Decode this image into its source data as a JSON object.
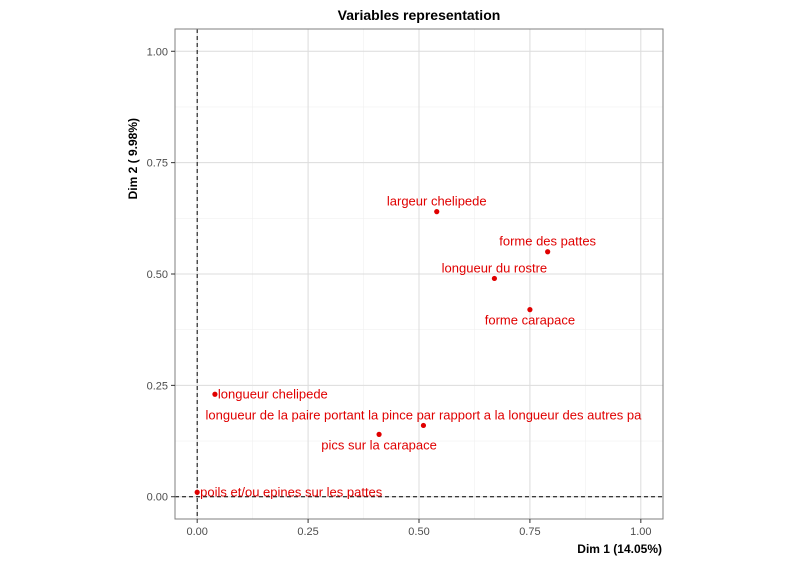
{
  "chart_data": {
    "type": "scatter",
    "title": "Variables representation",
    "xlabel": "Dim 1 (14.05%)",
    "ylabel": "Dim 2 ( 9.98%)",
    "xlim": [
      -0.05,
      1.05
    ],
    "ylim": [
      -0.05,
      1.05
    ],
    "x_ticks": [
      0.0,
      0.25,
      0.5,
      0.75,
      1.0
    ],
    "y_ticks": [
      0.0,
      0.25,
      0.5,
      0.75,
      1.0
    ],
    "x_tick_labels": [
      "0.00",
      "0.25",
      "0.50",
      "0.75",
      "1.00"
    ],
    "y_tick_labels": [
      "0.00",
      "0.25",
      "0.50",
      "0.75",
      "1.00"
    ],
    "grid": true,
    "reference_lines": {
      "x": 0,
      "y": 0,
      "style": "dashed"
    },
    "point_color": "#e00000",
    "points": [
      {
        "label": "largeur chelipede",
        "x": 0.54,
        "y": 0.64,
        "label_pos": "above"
      },
      {
        "label": "forme des pattes",
        "x": 0.79,
        "y": 0.55,
        "label_pos": "above"
      },
      {
        "label": "longueur du rostre",
        "x": 0.67,
        "y": 0.49,
        "label_pos": "above"
      },
      {
        "label": "forme carapace",
        "x": 0.75,
        "y": 0.42,
        "label_pos": "below"
      },
      {
        "label": "longueur chelipede",
        "x": 0.04,
        "y": 0.23,
        "label_pos": "right"
      },
      {
        "label": "longueur de la paire portant la pince par rapport a la longueur des autres pa",
        "x": 0.51,
        "y": 0.16,
        "label_pos": "above"
      },
      {
        "label": "pics sur la carapace",
        "x": 0.41,
        "y": 0.14,
        "label_pos": "below"
      },
      {
        "label": "poils et/ou epines sur les pattes",
        "x": 0.0,
        "y": 0.01,
        "label_pos": "right"
      }
    ]
  }
}
